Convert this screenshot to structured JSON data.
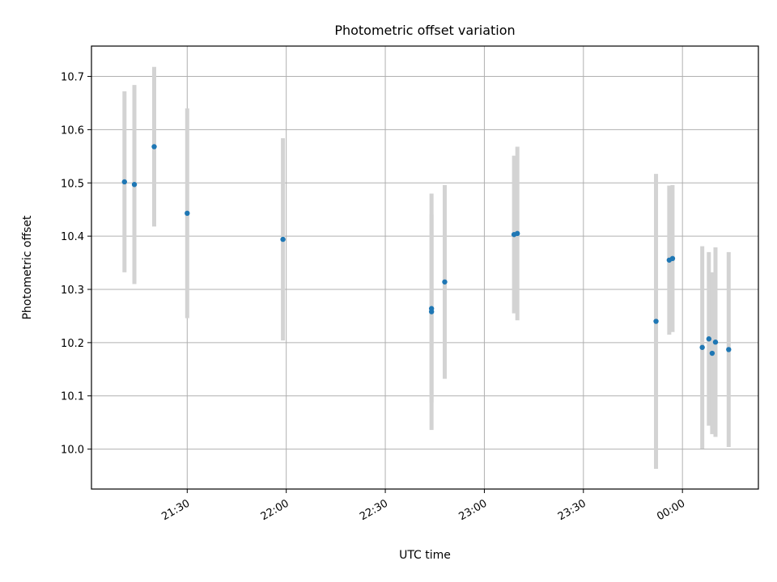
{
  "chart_data": {
    "type": "scatter",
    "title": "Photometric offset variation",
    "xlabel": "UTC time",
    "ylabel": "Photometric offset",
    "grid": true,
    "xlim": [
      "21:01",
      "00:23"
    ],
    "ylim": [
      9.925,
      10.757
    ],
    "x_ticks": [
      "21:30",
      "22:00",
      "22:30",
      "23:00",
      "23:30",
      "00:00"
    ],
    "y_ticks": [
      10.0,
      10.1,
      10.2,
      10.3,
      10.4,
      10.5,
      10.6,
      10.7
    ],
    "point_color": "#1f77b4",
    "errorbar_color": "#d3d3d3",
    "points": [
      {
        "x": "21:11",
        "y": 10.502,
        "yerr": 0.17
      },
      {
        "x": "21:14",
        "y": 10.497,
        "yerr": 0.187
      },
      {
        "x": "21:20",
        "y": 10.568,
        "yerr": 0.15
      },
      {
        "x": "21:30",
        "y": 10.443,
        "yerr": 0.197
      },
      {
        "x": "21:59",
        "y": 10.394,
        "yerr": 0.19
      },
      {
        "x": "22:44",
        "y": 10.264,
        "yerr": 0.177
      },
      {
        "x": "22:44",
        "y": 10.258,
        "yerr": 0.222
      },
      {
        "x": "22:48",
        "y": 10.314,
        "yerr": 0.182
      },
      {
        "x": "23:09",
        "y": 10.403,
        "yerr": 0.148
      },
      {
        "x": "23:10",
        "y": 10.405,
        "yerr": 0.163
      },
      {
        "x": "23:52",
        "y": 10.24,
        "yerr": 0.277
      },
      {
        "x": "23:56",
        "y": 10.355,
        "yerr": 0.14
      },
      {
        "x": "23:57",
        "y": 10.358,
        "yerr": 0.138
      },
      {
        "x": "00:06",
        "y": 10.191,
        "yerr": 0.19
      },
      {
        "x": "00:08",
        "y": 10.207,
        "yerr": 0.163
      },
      {
        "x": "00:09",
        "y": 10.18,
        "yerr": 0.152
      },
      {
        "x": "00:10",
        "y": 10.201,
        "yerr": 0.178
      },
      {
        "x": "00:14",
        "y": 10.187,
        "yerr": 0.183
      }
    ]
  }
}
